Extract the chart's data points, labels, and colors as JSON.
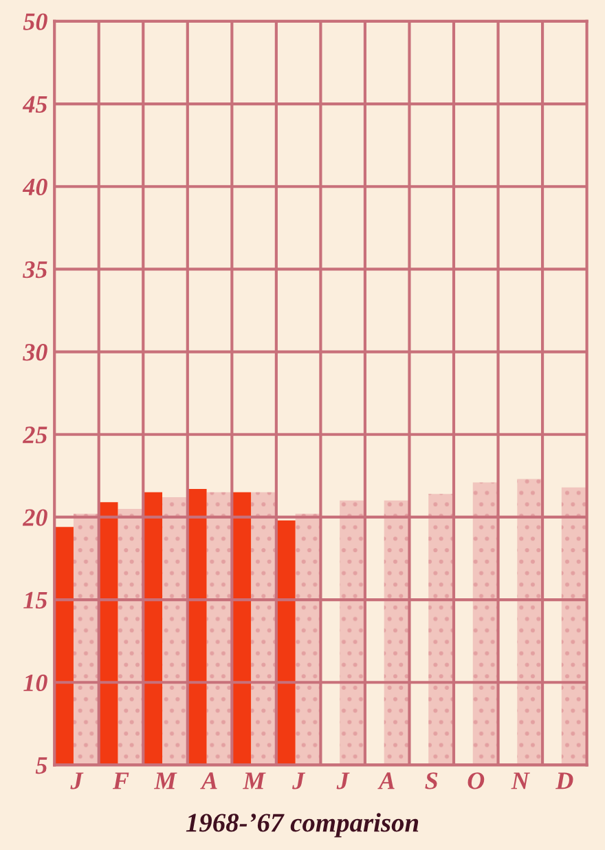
{
  "chart_data": {
    "type": "bar",
    "title": "1968-’67 comparison",
    "categories": [
      "J",
      "F",
      "M",
      "A",
      "M",
      "J",
      "J",
      "A",
      "S",
      "O",
      "N",
      "D"
    ],
    "series": [
      {
        "color": "#e8a4a4",
        "values": [
          20.2,
          20.5,
          21.2,
          21.5,
          21.5,
          20.2,
          21.0,
          21.0,
          21.4,
          22.1,
          22.3,
          21.8
        ]
      },
      {
        "color": "#f23a12",
        "values": [
          19.4,
          20.9,
          21.5,
          21.7,
          21.5,
          19.8,
          null,
          null,
          null,
          null,
          null,
          null
        ]
      }
    ],
    "ylim": [
      5,
      50
    ],
    "yticks": [
      5,
      10,
      15,
      20,
      25,
      30,
      35,
      40,
      45,
      50
    ],
    "grid": true
  }
}
